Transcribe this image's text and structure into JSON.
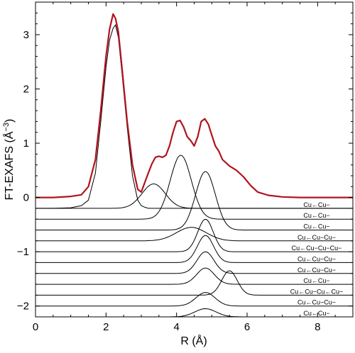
{
  "chart_data": {
    "type": "line",
    "title": "",
    "xlabel": "R (Å)",
    "ylabel": "FT-EXAFS (Å",
    "ylabel_exponent": "−3",
    "ylabel_close": ")",
    "xlim": [
      0,
      9
    ],
    "ylim": [
      -2.2,
      3.6
    ],
    "x_ticks": [
      0,
      2,
      4,
      6,
      8
    ],
    "x_tick_labels": [
      "0",
      "2",
      "4",
      "6",
      "8"
    ],
    "y_ticks": [
      -2,
      -1,
      0,
      1,
      2,
      3
    ],
    "y_tick_labels": [
      "−2",
      "−1",
      "0",
      "1",
      "2",
      "3"
    ],
    "grid": false,
    "legend": "none",
    "total": {
      "color": "#b0141e",
      "x": [
        0,
        0.5,
        1.0,
        1.3,
        1.5,
        1.7,
        1.85,
        2.0,
        2.1,
        2.2,
        2.27,
        2.35,
        2.45,
        2.6,
        2.75,
        2.9,
        3.0,
        3.1,
        3.2,
        3.3,
        3.4,
        3.5,
        3.6,
        3.7,
        3.8,
        3.9,
        4.0,
        4.1,
        4.2,
        4.3,
        4.4,
        4.5,
        4.6,
        4.7,
        4.8,
        4.9,
        5.0,
        5.1,
        5.2,
        5.3,
        5.5,
        5.7,
        5.9,
        6.1,
        6.3,
        6.6,
        7.0,
        7.5,
        8.0,
        8.5,
        9.0
      ],
      "y": [
        0.0,
        0.0,
        0.02,
        0.05,
        0.2,
        0.7,
        1.6,
        2.6,
        3.1,
        3.38,
        3.3,
        3.05,
        2.4,
        1.4,
        0.6,
        0.15,
        0.1,
        0.28,
        0.45,
        0.62,
        0.74,
        0.76,
        0.74,
        0.78,
        0.95,
        1.2,
        1.4,
        1.42,
        1.3,
        1.12,
        1.05,
        0.95,
        1.12,
        1.4,
        1.45,
        1.35,
        1.15,
        0.95,
        0.85,
        0.7,
        0.58,
        0.5,
        0.38,
        0.22,
        0.1,
        0.04,
        0.01,
        0.0,
        0.0,
        0.0,
        0.0
      ]
    },
    "first_shell": {
      "baseline": -0.2,
      "x": [
        0,
        0.5,
        1.0,
        1.3,
        1.5,
        1.7,
        1.85,
        2.0,
        2.1,
        2.2,
        2.27,
        2.35,
        2.45,
        2.6,
        2.75,
        2.9,
        3.0,
        3.1,
        3.2,
        3.4,
        3.6,
        4.0,
        4.5,
        5.0,
        6.0,
        7.0,
        8.0,
        9.0
      ],
      "y": [
        -0.2,
        -0.2,
        -0.19,
        -0.15,
        -0.05,
        0.45,
        1.4,
        2.4,
        2.9,
        3.12,
        3.18,
        2.95,
        2.3,
        1.3,
        0.4,
        -0.05,
        -0.15,
        -0.18,
        -0.2,
        -0.2,
        -0.2,
        -0.2,
        -0.2,
        -0.2,
        -0.2,
        -0.2,
        -0.2,
        -0.2
      ]
    },
    "paths": [
      {
        "label": "Cu←Cu−",
        "baseline": -0.2,
        "center": 3.35,
        "amp": 0.45,
        "width": 0.33
      },
      {
        "label": "Cu←Cu−",
        "baseline": -0.4,
        "center": 4.12,
        "amp": 1.18,
        "width": 0.3
      },
      {
        "label": "Cu←Cu−",
        "baseline": -0.6,
        "center": 4.82,
        "amp": 1.08,
        "width": 0.28
      },
      {
        "label": "Cu←Cu−Cu−",
        "baseline": -0.8,
        "center": 4.42,
        "amp": 0.25,
        "width": 0.42
      },
      {
        "label": "Cu←Cu−Cu−Cu−",
        "baseline": -1.0,
        "center": 4.82,
        "amp": 0.6,
        "width": 0.22
      },
      {
        "label": "Cu←Cu−Cu−",
        "baseline": -1.2,
        "center": 4.82,
        "amp": 0.5,
        "width": 0.23
      },
      {
        "label": "Cu←Cu−Cu−",
        "baseline": -1.4,
        "center": 4.82,
        "amp": 0.4,
        "width": 0.24
      },
      {
        "label": "Cu←Cu−",
        "baseline": -1.6,
        "center": 4.82,
        "amp": 0.3,
        "width": 0.25
      },
      {
        "label": "Cu←Cu−Cu←Cu−",
        "baseline": -1.8,
        "center": 5.5,
        "amp": 0.45,
        "width": 0.22
      },
      {
        "label": "Cu←Cu−Cu−",
        "baseline": -2.0,
        "center": 4.82,
        "amp": 0.25,
        "width": 0.27
      },
      {
        "label": "Cu←Cu−",
        "baseline": -2.2,
        "center": 4.82,
        "amp": 0.15,
        "width": 0.3
      }
    ]
  }
}
